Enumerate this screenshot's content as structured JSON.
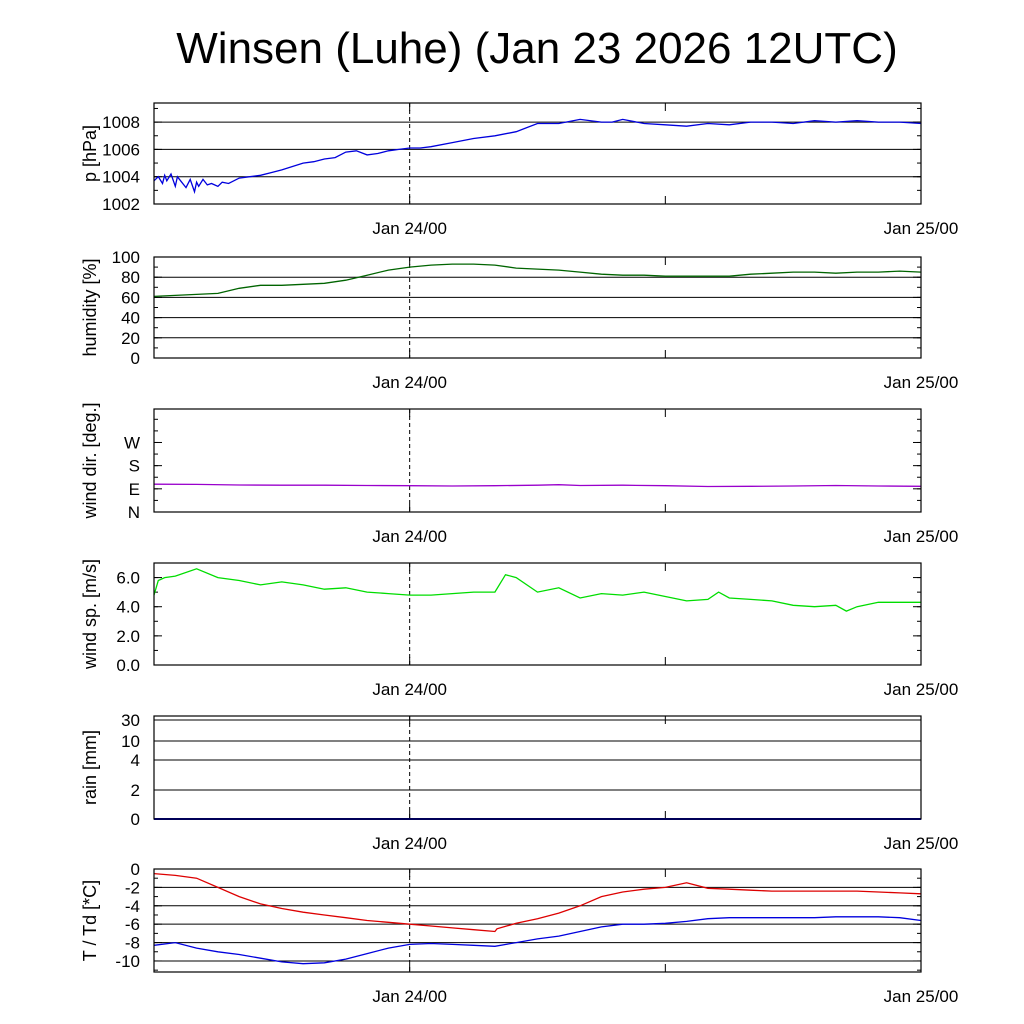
{
  "title": "Winsen (Luhe) (Jan 23 2026 12UTC)",
  "x_tick_labels": [
    "Jan 24/00",
    "Jan 25/00"
  ],
  "chart_data": [
    {
      "type": "line",
      "ylabel": "p [hPa]",
      "ylim": [
        1002,
        1009.4
      ],
      "yticks": [
        1002,
        1004,
        1006,
        1008
      ],
      "ytick_labels": [
        "1002",
        "1004",
        "1006",
        "1008"
      ],
      "grid": true,
      "xlim": [
        0,
        36
      ],
      "xlabel_note": "hours since Jan 23 12UTC",
      "series": [
        {
          "color": "#0000dd",
          "x": [
            0,
            0.2,
            0.4,
            0.5,
            0.6,
            0.8,
            1.0,
            1.1,
            1.3,
            1.5,
            1.7,
            1.9,
            2.0,
            2.1,
            2.3,
            2.5,
            2.7,
            3.0,
            3.2,
            3.5,
            4.0,
            4.5,
            5.0,
            5.5,
            6.0,
            7.0,
            7.5,
            8.0,
            8.5,
            9.0,
            9.5,
            10.0,
            10.5,
            11.0,
            11.5,
            12.0,
            12.5,
            13.0,
            14.0,
            15.0,
            16.0,
            17.0,
            18.0,
            19.0,
            20.0,
            21.0,
            21.5,
            22.0,
            23.0,
            24.0,
            25.0,
            26.0,
            27.0,
            28.0,
            29.0,
            30.0,
            31.0,
            32.0,
            33.0,
            34.0,
            35.0,
            36.0
          ],
          "y": [
            1003.7,
            1004.0,
            1003.5,
            1004.1,
            1003.7,
            1004.2,
            1003.3,
            1004.0,
            1003.6,
            1003.2,
            1003.8,
            1002.9,
            1003.6,
            1003.3,
            1003.8,
            1003.4,
            1003.5,
            1003.3,
            1003.6,
            1003.5,
            1003.9,
            1004.0,
            1004.1,
            1004.3,
            1004.5,
            1005.0,
            1005.1,
            1005.3,
            1005.4,
            1005.8,
            1005.9,
            1005.6,
            1005.7,
            1005.9,
            1006.0,
            1006.1,
            1006.1,
            1006.2,
            1006.5,
            1006.8,
            1007.0,
            1007.3,
            1007.9,
            1007.9,
            1008.2,
            1008.0,
            1008.0,
            1008.2,
            1007.9,
            1007.8,
            1007.7,
            1007.9,
            1007.8,
            1008.0,
            1008.0,
            1007.9,
            1008.1,
            1008.0,
            1008.1,
            1008.0,
            1008.0,
            1007.9
          ]
        }
      ]
    },
    {
      "type": "line",
      "ylabel": "humidity [%]",
      "ylim": [
        0,
        100
      ],
      "yticks": [
        0,
        20,
        40,
        60,
        80,
        100
      ],
      "ytick_labels": [
        "0",
        "20",
        "40",
        "60",
        "80",
        "100"
      ],
      "grid": true,
      "xlim": [
        0,
        36
      ],
      "series": [
        {
          "color": "#006400",
          "x": [
            0,
            1,
            2,
            3,
            4,
            5,
            6,
            7,
            8,
            9,
            10,
            11,
            12,
            13,
            14,
            15,
            16,
            17,
            18,
            19,
            20,
            21,
            22,
            23,
            24,
            25,
            26,
            27,
            28,
            29,
            30,
            31,
            32,
            33,
            34,
            35,
            36
          ],
          "y": [
            61,
            62,
            63,
            64,
            69,
            72,
            72,
            73,
            74,
            77,
            82,
            87,
            90,
            92,
            93,
            93,
            92,
            89,
            88,
            87,
            85,
            83,
            82,
            82,
            81,
            81,
            81,
            81,
            83,
            84,
            85,
            85,
            84,
            85,
            85,
            86,
            85
          ]
        }
      ]
    },
    {
      "type": "line",
      "ylabel": "wind dir. [deg.]",
      "ylim": [
        0,
        400
      ],
      "yticks": [
        0,
        90,
        180,
        270
      ],
      "ytick_labels": [
        "N",
        "E",
        "S",
        "W"
      ],
      "grid": false,
      "xlim": [
        0,
        36
      ],
      "series": [
        {
          "color": "#9900cc",
          "x": [
            0,
            2,
            4,
            6,
            8,
            10,
            12,
            14,
            16,
            18,
            19,
            20,
            22,
            24,
            26,
            28,
            30,
            32,
            34,
            36
          ],
          "y": [
            108,
            107,
            105,
            104,
            104,
            103,
            102,
            101,
            102,
            104,
            106,
            103,
            104,
            102,
            99,
            100,
            101,
            103,
            101,
            100
          ]
        }
      ]
    },
    {
      "type": "line",
      "ylabel": "wind sp. [m/s]",
      "ylim": [
        0,
        7
      ],
      "yticks": [
        0,
        2,
        4,
        6
      ],
      "ytick_labels": [
        "0.0",
        "2.0",
        "4.0",
        "6.0"
      ],
      "grid": false,
      "xlim": [
        0,
        36
      ],
      "series": [
        {
          "color": "#00dd00",
          "x": [
            0,
            0.2,
            0.5,
            1,
            2,
            3,
            4,
            5,
            6,
            7,
            8,
            9,
            10,
            11,
            12,
            13,
            14,
            15,
            16,
            16.5,
            17,
            18,
            19,
            20,
            21,
            22,
            23,
            24,
            25,
            26,
            26.5,
            27,
            28,
            29,
            30,
            31,
            32,
            32.5,
            33,
            34,
            35,
            36
          ],
          "y": [
            4.8,
            5.8,
            6.0,
            6.1,
            6.6,
            6.0,
            5.8,
            5.5,
            5.7,
            5.5,
            5.2,
            5.3,
            5.0,
            4.9,
            4.8,
            4.8,
            4.9,
            5.0,
            5.0,
            6.2,
            6.0,
            5.0,
            5.3,
            4.6,
            4.9,
            4.8,
            5.0,
            4.7,
            4.4,
            4.5,
            5.0,
            4.6,
            4.5,
            4.4,
            4.1,
            4.0,
            4.1,
            3.7,
            4.0,
            4.3,
            4.3,
            4.3
          ]
        }
      ]
    },
    {
      "type": "line",
      "ylabel": "rain [mm]",
      "yticks": [
        0,
        2,
        4,
        10,
        30
      ],
      "ytick_labels": [
        "0",
        "2",
        "4",
        "10",
        "30"
      ],
      "grid": true,
      "xlim": [
        0,
        36
      ],
      "series": [
        {
          "color": "#0000dd",
          "x": [
            0,
            36
          ],
          "y": [
            0,
            0
          ]
        }
      ]
    },
    {
      "type": "line",
      "ylabel": "T / Td [*C]",
      "ylim": [
        -11.2,
        0
      ],
      "yticks": [
        0,
        -2,
        -4,
        -6,
        -8,
        -10
      ],
      "ytick_labels": [
        "0",
        "-2",
        "-4",
        "-6",
        "-8",
        "-10"
      ],
      "grid": true,
      "xlim": [
        0,
        36
      ],
      "series": [
        {
          "color": "#dd0000",
          "x": [
            0,
            1,
            2,
            3,
            4,
            5,
            6,
            7,
            8,
            9,
            10,
            11,
            12,
            13,
            14,
            15,
            16,
            16.1,
            17,
            18,
            19,
            20,
            21,
            22,
            23,
            24,
            25,
            26,
            27,
            28,
            29,
            30,
            31,
            32,
            33,
            34,
            35,
            36
          ],
          "y": [
            -0.5,
            -0.7,
            -1.0,
            -2.0,
            -3.0,
            -3.8,
            -4.3,
            -4.7,
            -5.0,
            -5.3,
            -5.6,
            -5.8,
            -6.0,
            -6.2,
            -6.4,
            -6.6,
            -6.8,
            -6.5,
            -5.9,
            -5.4,
            -4.8,
            -4.0,
            -3.0,
            -2.5,
            -2.2,
            -2.0,
            -1.5,
            -2.1,
            -2.2,
            -2.3,
            -2.4,
            -2.4,
            -2.4,
            -2.4,
            -2.4,
            -2.5,
            -2.6,
            -2.7
          ]
        },
        {
          "color": "#0000dd",
          "x": [
            0,
            1,
            2,
            3,
            4,
            5,
            6,
            7,
            8,
            9,
            10,
            11,
            12,
            13,
            14,
            15,
            16,
            17,
            18,
            19,
            20,
            21,
            22,
            23,
            24,
            25,
            26,
            27,
            28,
            29,
            30,
            31,
            32,
            33,
            34,
            35,
            36
          ],
          "y": [
            -8.3,
            -8.0,
            -8.6,
            -9.0,
            -9.3,
            -9.7,
            -10.1,
            -10.3,
            -10.2,
            -9.8,
            -9.2,
            -8.6,
            -8.2,
            -8.1,
            -8.2,
            -8.3,
            -8.4,
            -8.0,
            -7.6,
            -7.3,
            -6.8,
            -6.3,
            -6.0,
            -6.0,
            -5.9,
            -5.7,
            -5.4,
            -5.3,
            -5.3,
            -5.3,
            -5.3,
            -5.3,
            -5.2,
            -5.2,
            -5.2,
            -5.3,
            -5.6
          ]
        }
      ]
    }
  ]
}
